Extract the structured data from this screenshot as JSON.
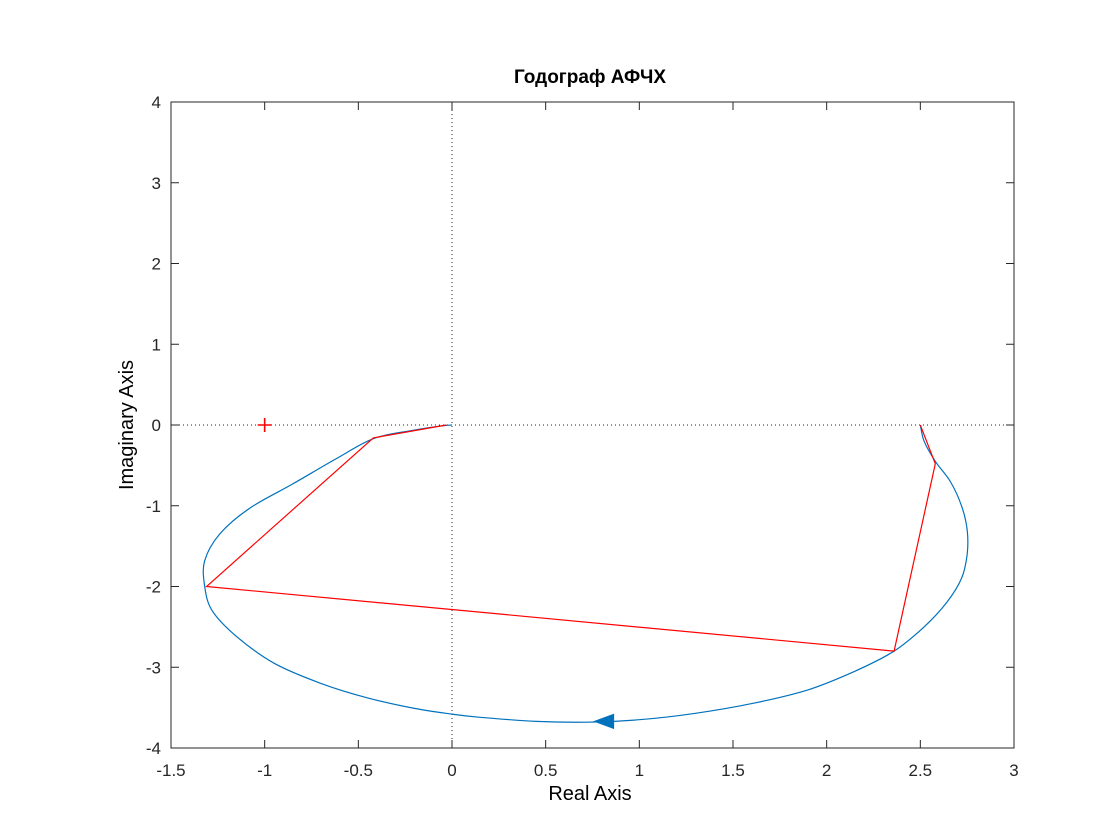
{
  "chart_data": {
    "type": "line",
    "title": "Годограф АФЧХ",
    "xlabel": "Real Axis",
    "ylabel": "Imaginary Axis",
    "xlim": [
      -1.5,
      3
    ],
    "ylim": [
      -4,
      4
    ],
    "xticks": [
      -1.5,
      -1,
      -0.5,
      0,
      0.5,
      1,
      1.5,
      2,
      2.5,
      3
    ],
    "xtick_labels": [
      "-1.5",
      "-1",
      "-0.5",
      "0",
      "0.5",
      "1",
      "1.5",
      "2",
      "2.5",
      "3"
    ],
    "yticks": [
      -4,
      -3,
      -2,
      -1,
      0,
      1,
      2,
      3,
      4
    ],
    "ytick_labels": [
      "-4",
      "-3",
      "-2",
      "-1",
      "0",
      "1",
      "2",
      "3",
      "4"
    ],
    "grid": false,
    "zero_lines": "dotted",
    "critical_point": {
      "x": -1,
      "y": 0,
      "marker": "+",
      "color": "#ff0000"
    },
    "series": [
      {
        "color": "#0072bd",
        "style": "solid",
        "points": [
          [
            2.5,
            0
          ],
          [
            2.52,
            -0.2
          ],
          [
            2.58,
            -0.45
          ],
          [
            2.66,
            -0.7
          ],
          [
            2.72,
            -1.0
          ],
          [
            2.75,
            -1.3
          ],
          [
            2.75,
            -1.6
          ],
          [
            2.72,
            -1.9
          ],
          [
            2.64,
            -2.2
          ],
          [
            2.52,
            -2.5
          ],
          [
            2.36,
            -2.8
          ],
          [
            2.15,
            -3.05
          ],
          [
            1.9,
            -3.28
          ],
          [
            1.6,
            -3.45
          ],
          [
            1.3,
            -3.57
          ],
          [
            1.0,
            -3.65
          ],
          [
            0.72,
            -3.68
          ],
          [
            0.45,
            -3.67
          ],
          [
            0.15,
            -3.62
          ],
          [
            0.0,
            -3.58
          ],
          [
            -0.2,
            -3.51
          ],
          [
            -0.45,
            -3.38
          ],
          [
            -0.7,
            -3.2
          ],
          [
            -0.95,
            -2.95
          ],
          [
            -1.15,
            -2.62
          ],
          [
            -1.28,
            -2.3
          ],
          [
            -1.32,
            -2.0
          ],
          [
            -1.32,
            -1.68
          ],
          [
            -1.24,
            -1.35
          ],
          [
            -1.08,
            -1.03
          ],
          [
            -0.85,
            -0.73
          ],
          [
            -0.62,
            -0.42
          ],
          [
            -0.42,
            -0.17
          ],
          [
            -0.22,
            -0.07
          ],
          [
            -0.05,
            -0.01
          ],
          [
            0.0,
            0.0
          ]
        ]
      },
      {
        "color": "#ff0000",
        "style": "solid",
        "points": [
          [
            2.5,
            0
          ],
          [
            2.58,
            -0.48
          ],
          [
            2.36,
            -2.8
          ],
          [
            -1.31,
            -2.0
          ],
          [
            -0.42,
            -0.16
          ],
          [
            -0.03,
            0.0
          ]
        ]
      }
    ],
    "direction_arrow": {
      "x": 0.82,
      "y": -3.67,
      "color": "#0072bd"
    }
  }
}
